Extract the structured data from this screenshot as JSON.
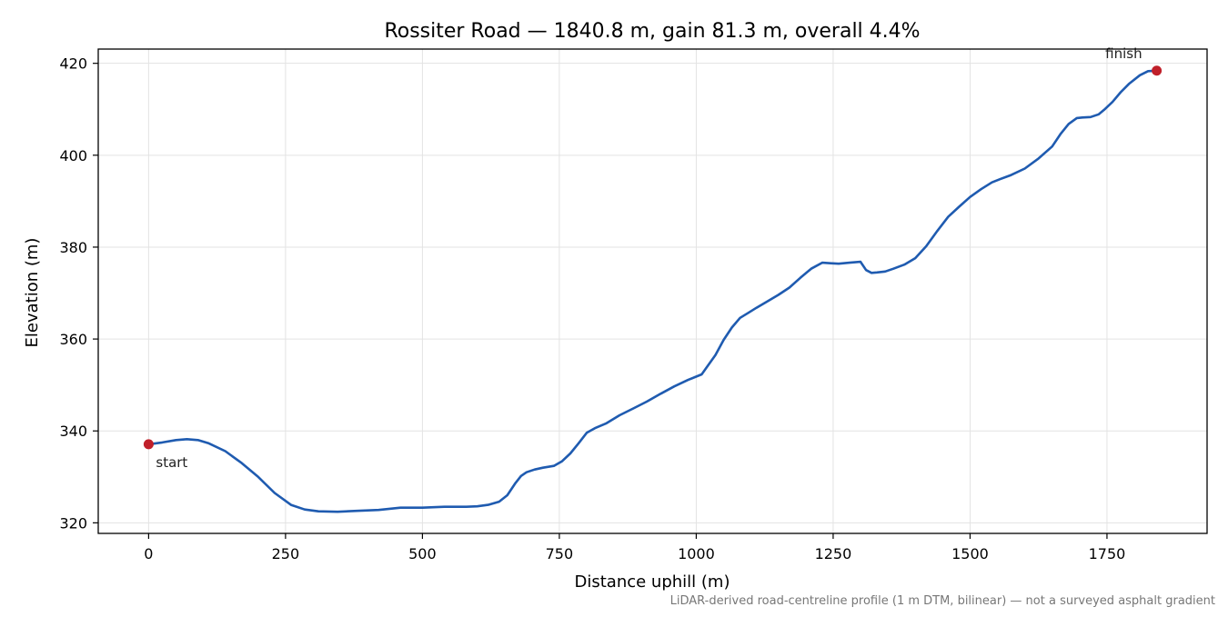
{
  "chart_data": {
    "type": "line",
    "title": "Rossiter Road — 1840.8 m, gain 81.3 m, overall 4.4%",
    "xlabel": "Distance uphill (m)",
    "ylabel": "Elevation (m)",
    "xlim": [
      -92,
      1932.8
    ],
    "ylim": [
      317.7,
      423.1
    ],
    "xticks": [
      0,
      250,
      500,
      750,
      1000,
      1250,
      1500,
      1750
    ],
    "yticks": [
      320,
      340,
      360,
      380,
      400,
      420
    ],
    "grid": true,
    "footnote": "LiDAR-derived road-centreline profile (1 m DTM, bilinear) — not a surveyed asphalt gradient",
    "colors": {
      "line": "#1f5bb0",
      "marker": "#c0202a",
      "grid": "#e3e3e3",
      "axes": "#000000",
      "footnote": "#777777"
    },
    "series": [
      {
        "x": [
          0,
          25,
          50,
          70,
          90,
          110,
          140,
          170,
          200,
          230,
          260,
          285,
          310,
          345,
          380,
          420,
          460,
          500,
          540,
          580,
          600,
          620,
          640,
          655,
          670,
          680,
          690,
          705,
          720,
          740,
          755,
          770,
          785,
          800,
          815,
          835,
          860,
          885,
          910,
          935,
          960,
          985,
          1010,
          1020,
          1035,
          1050,
          1065,
          1080,
          1095,
          1110,
          1130,
          1150,
          1170,
          1190,
          1210,
          1230,
          1245,
          1260,
          1280,
          1300,
          1310,
          1320,
          1330,
          1345,
          1360,
          1380,
          1400,
          1420,
          1440,
          1460,
          1480,
          1500,
          1520,
          1540,
          1555,
          1575,
          1600,
          1625,
          1650,
          1665,
          1680,
          1695,
          1705,
          1720,
          1735,
          1745,
          1760,
          1775,
          1790,
          1810,
          1825,
          1840.8
        ],
        "y": [
          337.1,
          337.5,
          338.0,
          338.2,
          338.0,
          337.3,
          335.6,
          333.0,
          330.0,
          326.5,
          323.9,
          322.9,
          322.5,
          322.4,
          322.6,
          322.8,
          323.3,
          323.3,
          323.5,
          323.5,
          323.6,
          323.9,
          324.6,
          326.0,
          328.7,
          330.2,
          331.0,
          331.6,
          332.0,
          332.4,
          333.4,
          335.1,
          337.3,
          339.6,
          340.6,
          341.6,
          343.4,
          344.9,
          346.4,
          348.1,
          349.7,
          351.1,
          352.3,
          354.0,
          356.5,
          359.8,
          362.5,
          364.6,
          365.7,
          366.8,
          368.2,
          369.6,
          371.2,
          373.3,
          375.3,
          376.6,
          376.5,
          376.4,
          376.6,
          376.8,
          375.0,
          374.4,
          374.5,
          374.7,
          375.3,
          376.2,
          377.6,
          380.2,
          383.5,
          386.6,
          388.8,
          390.9,
          392.6,
          394.1,
          394.8,
          395.7,
          397.1,
          399.3,
          401.9,
          404.6,
          406.8,
          408.1,
          408.2,
          408.3,
          408.9,
          409.9,
          411.6,
          413.7,
          415.5,
          417.4,
          418.3,
          418.4
        ]
      }
    ],
    "annotations": [
      {
        "label": "start",
        "x": 0,
        "y": 337.1
      },
      {
        "label": "finish",
        "x": 1840.8,
        "y": 418.4
      }
    ]
  }
}
